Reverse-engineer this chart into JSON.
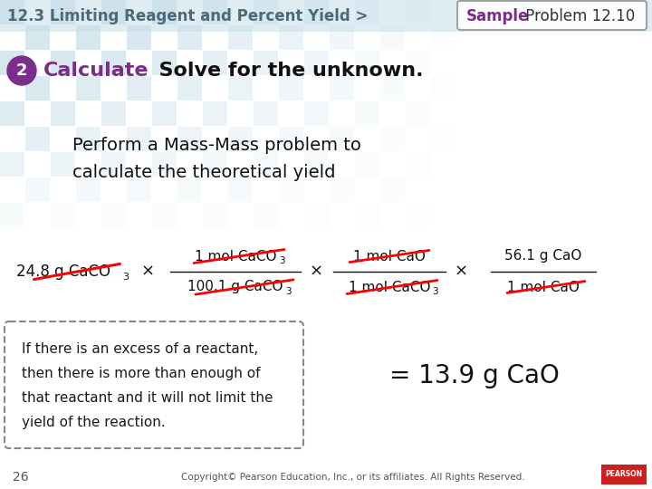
{
  "header_text": "12.3 Limiting Reagent and Percent Yield >",
  "header_color": "#4a6a7a",
  "sample_label": "Sample",
  "sample_color": "#7b2d8b",
  "problem_text": " Problem 12.10",
  "step_number": "2",
  "step_bg_color": "#7b2d8b",
  "step_label": "Calculate",
  "step_label_color": "#7b2d8b",
  "step_desc": "  Solve for the unknown.",
  "body_text1": "Perform a Mass-Mass problem to",
  "body_text2": "calculate the theoretical yield",
  "times": "×",
  "result": "= 13.9 g CaO",
  "box_text1": "If there is an excess of a reactant,",
  "box_text2": "then there is more than enough of",
  "box_text3": "that reactant and it will not limit the",
  "box_text4": "yield of the reaction.",
  "footnote": "26",
  "copyright": "Copyright© Pearson Education, Inc., or its affiliates. All Rights Reserved.",
  "bg_color": "#ffffff",
  "tile_color": "#c5dde8",
  "header_bg": "#c5dde8",
  "tile_size": 28
}
